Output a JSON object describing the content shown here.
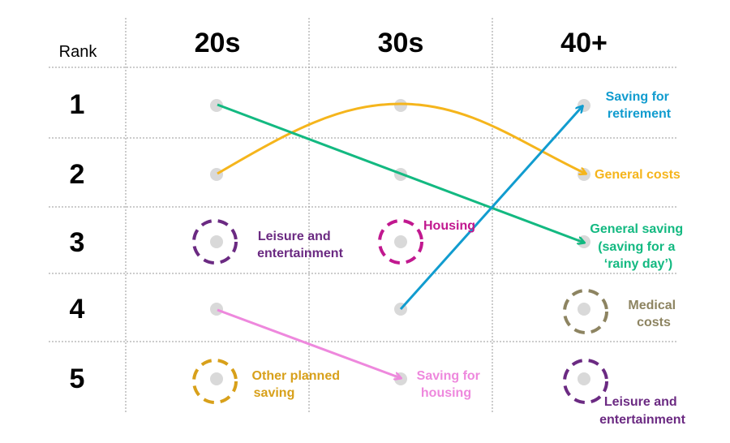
{
  "header": {
    "rank_label": "Rank",
    "columns": [
      "20s",
      "30s",
      "40+"
    ]
  },
  "ranks": [
    "1",
    "2",
    "3",
    "4",
    "5"
  ],
  "colors": {
    "yellow": "#F5B51C",
    "green": "#13B981",
    "blue": "#119CCF",
    "pink": "#EE88DD",
    "purple": "#6B2A82",
    "magenta": "#C1188F",
    "olive": "#8D8461",
    "mustard": "#D8A01A",
    "dot": "#D9D9D9",
    "grid": "#9A9A9A"
  },
  "labels": {
    "retirement": [
      "Saving for",
      "retirement"
    ],
    "general_costs": [
      "General costs"
    ],
    "general_saving": [
      "General saving",
      "(saving for a",
      "‘rainy day’)"
    ],
    "medical": [
      "Medical",
      "costs"
    ],
    "leisure_40": [
      "Leisure and",
      "entertainment"
    ],
    "leisure_20": [
      "Leisure and",
      "entertainment"
    ],
    "housing": [
      "Housing"
    ],
    "saving_housing": [
      "Saving for",
      "housing"
    ],
    "other_planned": [
      "Other planned",
      "saving"
    ]
  }
}
